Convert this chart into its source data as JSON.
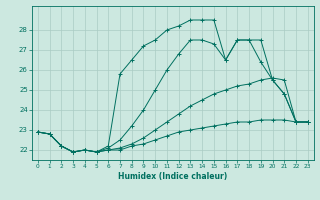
{
  "xlabel": "Humidex (Indice chaleur)",
  "background_color": "#cce8e0",
  "grid_color": "#aaccc4",
  "line_color": "#007060",
  "xlim": [
    -0.5,
    23.5
  ],
  "ylim": [
    21.5,
    29.2
  ],
  "xticks": [
    0,
    1,
    2,
    3,
    4,
    5,
    6,
    7,
    8,
    9,
    10,
    11,
    12,
    13,
    14,
    15,
    16,
    17,
    18,
    19,
    20,
    21,
    22,
    23
  ],
  "yticks": [
    22,
    23,
    24,
    25,
    26,
    27,
    28
  ],
  "line_bottom": {
    "x": [
      0,
      1,
      2,
      3,
      4,
      5,
      6,
      7,
      8,
      9,
      10,
      11,
      12,
      13,
      14,
      15,
      16,
      17,
      18,
      19,
      20,
      21,
      22,
      23
    ],
    "y": [
      22.9,
      22.8,
      22.2,
      21.9,
      22.0,
      21.9,
      22.0,
      22.0,
      22.2,
      22.3,
      22.5,
      22.7,
      22.9,
      23.0,
      23.1,
      23.2,
      23.3,
      23.4,
      23.4,
      23.5,
      23.5,
      23.5,
      23.4,
      23.4
    ]
  },
  "line_low_mid": {
    "x": [
      0,
      1,
      2,
      3,
      4,
      5,
      6,
      7,
      8,
      9,
      10,
      11,
      12,
      13,
      14,
      15,
      16,
      17,
      18,
      19,
      20,
      21,
      22,
      23
    ],
    "y": [
      22.9,
      22.8,
      22.2,
      21.9,
      22.0,
      21.9,
      22.0,
      22.1,
      22.3,
      22.6,
      23.0,
      23.4,
      23.8,
      24.2,
      24.5,
      24.8,
      25.0,
      25.2,
      25.3,
      25.5,
      25.6,
      25.5,
      23.4,
      23.4
    ]
  },
  "line_high_mid": {
    "x": [
      0,
      1,
      2,
      3,
      4,
      5,
      6,
      7,
      8,
      9,
      10,
      11,
      12,
      13,
      14,
      15,
      16,
      17,
      18,
      19,
      20,
      21,
      22,
      23
    ],
    "y": [
      22.9,
      22.8,
      22.2,
      21.9,
      22.0,
      21.9,
      22.1,
      22.5,
      23.2,
      24.0,
      25.0,
      26.0,
      26.8,
      27.5,
      27.5,
      27.3,
      26.5,
      27.5,
      27.5,
      27.5,
      25.5,
      24.8,
      23.4,
      23.4
    ]
  },
  "line_top": {
    "x": [
      0,
      1,
      2,
      3,
      4,
      5,
      6,
      7,
      8,
      9,
      10,
      11,
      12,
      13,
      14,
      15,
      16,
      17,
      18,
      19,
      20,
      21,
      22,
      23
    ],
    "y": [
      22.9,
      22.8,
      22.2,
      21.9,
      22.0,
      21.9,
      22.2,
      25.8,
      26.5,
      27.2,
      27.5,
      28.0,
      28.2,
      28.5,
      28.5,
      28.5,
      26.5,
      27.5,
      27.5,
      26.4,
      25.5,
      24.8,
      23.4,
      23.4
    ]
  }
}
